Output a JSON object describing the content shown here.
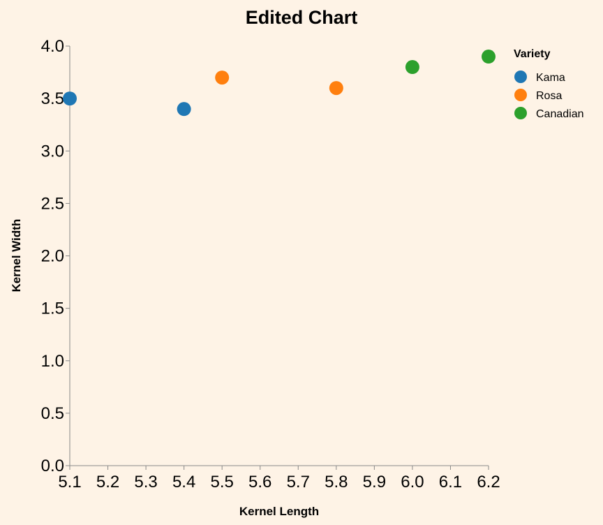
{
  "chart_data": {
    "type": "scatter",
    "title": "Edited Chart",
    "xlabel": "Kernel Length",
    "ylabel": "Kernel Width",
    "xlim": [
      5.1,
      6.2
    ],
    "ylim": [
      0.0,
      4.0
    ],
    "x_ticks": [
      "5.1",
      "5.2",
      "5.3",
      "5.4",
      "5.5",
      "5.6",
      "5.7",
      "5.8",
      "5.9",
      "6.0",
      "6.1",
      "6.2"
    ],
    "y_ticks": [
      "0.0",
      "0.5",
      "1.0",
      "1.5",
      "2.0",
      "2.5",
      "3.0",
      "3.5",
      "4.0"
    ],
    "grid": false,
    "legend": {
      "title": "Variety",
      "placement": "top-right"
    },
    "series": [
      {
        "name": "Kama",
        "color": "#1f77b4",
        "points": [
          {
            "x": 5.1,
            "y": 3.5
          },
          {
            "x": 5.4,
            "y": 3.4
          }
        ]
      },
      {
        "name": "Rosa",
        "color": "#ff7f0e",
        "points": [
          {
            "x": 5.5,
            "y": 3.7
          },
          {
            "x": 5.8,
            "y": 3.6
          }
        ]
      },
      {
        "name": "Canadian",
        "color": "#2ca02c",
        "points": [
          {
            "x": 6.0,
            "y": 3.8
          },
          {
            "x": 6.2,
            "y": 3.9
          }
        ]
      }
    ]
  }
}
